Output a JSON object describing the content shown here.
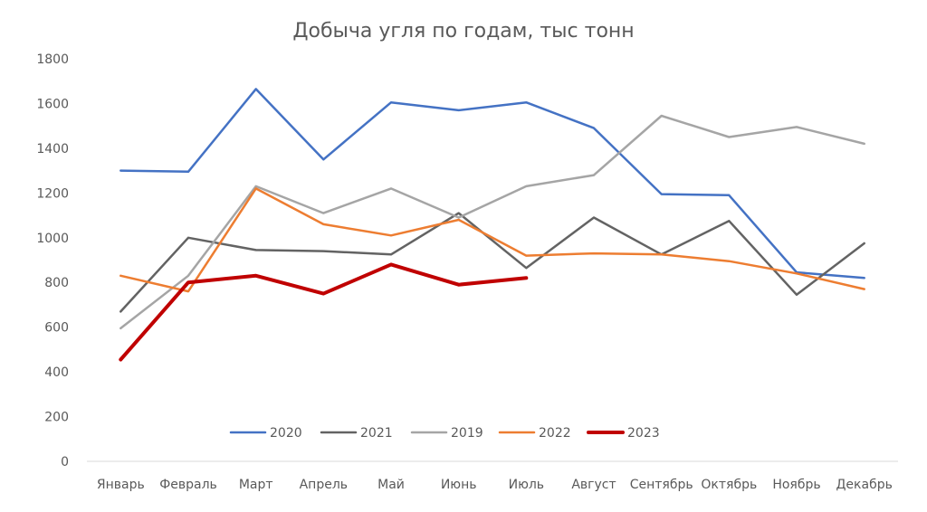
{
  "chart_data": {
    "type": "line",
    "title": "Добыча угля по годам, тыс тонн",
    "categories": [
      "Январь",
      "Февраль",
      "Март",
      "Апрель",
      "Май",
      "Июнь",
      "Июль",
      "Август",
      "Сентябрь",
      "Октябрь",
      "Ноябрь",
      "Декабрь"
    ],
    "yticks": [
      "0",
      "200",
      "400",
      "600",
      "800",
      "1000",
      "1200",
      "1400",
      "1600",
      "1800"
    ],
    "ylim": [
      0,
      1800
    ],
    "grid": false,
    "legend_position": "bottom-inside",
    "series": [
      {
        "name": "2020",
        "color": "#4472C4",
        "bold": false,
        "values": [
          1300,
          1295,
          1665,
          1350,
          1605,
          1570,
          1605,
          1490,
          1195,
          1190,
          845,
          820
        ]
      },
      {
        "name": "2021",
        "color": "#636363",
        "bold": false,
        "values": [
          670,
          1000,
          945,
          940,
          925,
          1110,
          865,
          1090,
          925,
          1075,
          745,
          975
        ]
      },
      {
        "name": "2019",
        "color": "#A5A5A5",
        "bold": false,
        "values": [
          595,
          830,
          1230,
          1110,
          1220,
          1090,
          1230,
          1280,
          1545,
          1450,
          1495,
          1420
        ]
      },
      {
        "name": "2022",
        "color": "#ED7D31",
        "bold": false,
        "values": [
          830,
          760,
          1220,
          1060,
          1010,
          1080,
          920,
          930,
          925,
          895,
          840,
          770
        ]
      },
      {
        "name": "2023",
        "color": "#C00000",
        "bold": true,
        "values": [
          455,
          800,
          830,
          750,
          880,
          790,
          820,
          null,
          null,
          null,
          null,
          null
        ]
      }
    ]
  }
}
